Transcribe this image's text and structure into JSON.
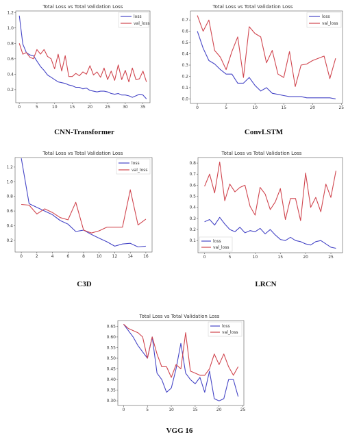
{
  "colors": {
    "loss": "#4545c6",
    "val_loss": "#d0454e"
  },
  "chart_data": [
    {
      "type": "line",
      "title": "Total Loss vs Total Validation Loss",
      "caption": "CNN-Transformer",
      "legend": "top-right",
      "xlim": [
        -1,
        37
      ],
      "ylim": [
        0.03,
        1.22
      ],
      "xticks": [
        0,
        5,
        10,
        15,
        20,
        25,
        30,
        35
      ],
      "yticks": [
        0.2,
        0.4,
        0.6,
        0.8,
        1.0,
        1.2
      ],
      "ytick_labels": [
        "0.2",
        "0.4",
        "0.6",
        "0.8",
        "1.0",
        "1.2"
      ],
      "series": [
        {
          "name": "loss",
          "color": "#4545c6",
          "x": [
            0,
            1,
            2,
            3,
            4,
            5,
            6,
            7,
            8,
            9,
            10,
            11,
            12,
            13,
            14,
            15,
            16,
            17,
            18,
            19,
            20,
            21,
            22,
            23,
            24,
            25,
            26,
            27,
            28,
            29,
            30,
            31,
            32,
            33,
            34,
            35,
            36
          ],
          "values": [
            1.16,
            0.79,
            0.68,
            0.65,
            0.64,
            0.57,
            0.5,
            0.45,
            0.39,
            0.36,
            0.33,
            0.3,
            0.29,
            0.28,
            0.26,
            0.25,
            0.23,
            0.23,
            0.21,
            0.22,
            0.19,
            0.18,
            0.17,
            0.18,
            0.18,
            0.17,
            0.15,
            0.14,
            0.15,
            0.13,
            0.13,
            0.12,
            0.1,
            0.12,
            0.14,
            0.13,
            0.08
          ]
        },
        {
          "name": "val_loss",
          "color": "#d0454e",
          "x": [
            0,
            1,
            2,
            3,
            4,
            5,
            6,
            7,
            8,
            9,
            10,
            11,
            12,
            13,
            14,
            15,
            16,
            17,
            18,
            19,
            20,
            21,
            22,
            23,
            24,
            25,
            26,
            27,
            28,
            29,
            30,
            31,
            32,
            33,
            34,
            35,
            36
          ],
          "values": [
            0.8,
            0.66,
            0.68,
            0.62,
            0.6,
            0.72,
            0.66,
            0.72,
            0.63,
            0.6,
            0.47,
            0.66,
            0.44,
            0.64,
            0.37,
            0.37,
            0.41,
            0.38,
            0.43,
            0.4,
            0.51,
            0.39,
            0.43,
            0.36,
            0.48,
            0.33,
            0.44,
            0.32,
            0.52,
            0.33,
            0.45,
            0.3,
            0.48,
            0.33,
            0.34,
            0.44,
            0.3
          ]
        }
      ]
    },
    {
      "type": "line",
      "title": "Total Loss vs Total Validation Loss",
      "caption": "ConvLSTM",
      "legend": "top-right",
      "xlim": [
        -1.2,
        25.2
      ],
      "ylim": [
        -0.04,
        0.78
      ],
      "xticks": [
        0,
        5,
        10,
        15,
        20,
        25
      ],
      "yticks": [
        0.0,
        0.1,
        0.2,
        0.3,
        0.4,
        0.5,
        0.6,
        0.7
      ],
      "ytick_labels": [
        "0.0",
        "0.1",
        "0.2",
        "0.3",
        "0.4",
        "0.5",
        "0.6",
        "0.7"
      ],
      "series": [
        {
          "name": "loss",
          "color": "#4545c6",
          "x": [
            0,
            1,
            2,
            3,
            4,
            5,
            6,
            7,
            8,
            9,
            10,
            11,
            12,
            13,
            14,
            15,
            16,
            17,
            18,
            19,
            20,
            21,
            22,
            23,
            24
          ],
          "values": [
            0.6,
            0.45,
            0.34,
            0.31,
            0.26,
            0.22,
            0.22,
            0.14,
            0.14,
            0.19,
            0.12,
            0.07,
            0.1,
            0.05,
            0.04,
            0.03,
            0.02,
            0.02,
            0.02,
            0.01,
            0.01,
            0.01,
            0.01,
            0.01,
            0.0
          ]
        },
        {
          "name": "val_loss",
          "color": "#d0454e",
          "x": [
            0,
            1,
            2,
            3,
            4,
            5,
            6,
            7,
            8,
            9,
            10,
            11,
            12,
            13,
            14,
            15,
            16,
            17,
            18,
            19,
            20,
            21,
            22,
            23,
            24
          ],
          "values": [
            0.74,
            0.6,
            0.7,
            0.43,
            0.37,
            0.26,
            0.42,
            0.55,
            0.19,
            0.64,
            0.58,
            0.55,
            0.32,
            0.43,
            0.22,
            0.19,
            0.42,
            0.11,
            0.3,
            0.31,
            0.34,
            0.36,
            0.38,
            0.18,
            0.36
          ]
        }
      ]
    },
    {
      "type": "line",
      "title": "Total Loss vs Total Validation Loss",
      "caption": "C3D",
      "legend": "top-right",
      "xlim": [
        -0.8,
        16.8
      ],
      "ylim": [
        0.04,
        1.33
      ],
      "xticks": [
        0,
        2,
        4,
        6,
        8,
        10,
        12,
        14,
        16
      ],
      "yticks": [
        0.2,
        0.4,
        0.6,
        0.8,
        1.0,
        1.2
      ],
      "ytick_labels": [
        "0.2",
        "0.4",
        "0.6",
        "0.8",
        "1.0",
        "1.2"
      ],
      "series": [
        {
          "name": "loss",
          "color": "#4545c6",
          "x": [
            0,
            1,
            2,
            3,
            4,
            5,
            6,
            7,
            8,
            9,
            10,
            11,
            12,
            13,
            14,
            15,
            16
          ],
          "values": [
            1.32,
            0.7,
            0.65,
            0.6,
            0.55,
            0.47,
            0.42,
            0.32,
            0.34,
            0.28,
            0.23,
            0.18,
            0.12,
            0.15,
            0.16,
            0.11,
            0.12
          ]
        },
        {
          "name": "val_loss",
          "color": "#d0454e",
          "x": [
            0,
            1,
            2,
            3,
            4,
            5,
            6,
            7,
            8,
            9,
            10,
            11,
            12,
            13,
            14,
            15,
            16
          ],
          "values": [
            0.69,
            0.68,
            0.56,
            0.63,
            0.58,
            0.51,
            0.48,
            0.72,
            0.34,
            0.3,
            0.33,
            0.38,
            0.38,
            0.38,
            0.89,
            0.41,
            0.49
          ]
        }
      ]
    },
    {
      "type": "line",
      "title": "Total Loss vs Total Validation Loss",
      "caption": "LRCN",
      "legend": "lower-left",
      "xlim": [
        -1.3,
        27.3
      ],
      "ylim": [
        -0.01,
        0.85
      ],
      "xticks": [
        0,
        5,
        10,
        15,
        20,
        25
      ],
      "yticks": [
        0.1,
        0.2,
        0.3,
        0.4,
        0.5,
        0.6,
        0.7,
        0.8
      ],
      "ytick_labels": [
        "0.1",
        "0.2",
        "0.3",
        "0.4",
        "0.5",
        "0.6",
        "0.7",
        "0.8"
      ],
      "series": [
        {
          "name": "loss",
          "color": "#4545c6",
          "x": [
            0,
            1,
            2,
            3,
            4,
            5,
            6,
            7,
            8,
            9,
            10,
            11,
            12,
            13,
            14,
            15,
            16,
            17,
            18,
            19,
            20,
            21,
            22,
            23,
            24,
            25,
            26
          ],
          "values": [
            0.27,
            0.29,
            0.24,
            0.31,
            0.25,
            0.2,
            0.18,
            0.22,
            0.17,
            0.19,
            0.18,
            0.21,
            0.16,
            0.2,
            0.15,
            0.11,
            0.1,
            0.13,
            0.1,
            0.09,
            0.07,
            0.06,
            0.09,
            0.1,
            0.07,
            0.04,
            0.03
          ]
        },
        {
          "name": "val_loss",
          "color": "#d0454e",
          "x": [
            0,
            1,
            2,
            3,
            4,
            5,
            6,
            7,
            8,
            9,
            10,
            11,
            12,
            13,
            14,
            15,
            16,
            17,
            18,
            19,
            20,
            21,
            22,
            23,
            24,
            25,
            26
          ],
          "values": [
            0.59,
            0.7,
            0.53,
            0.81,
            0.46,
            0.61,
            0.54,
            0.58,
            0.6,
            0.41,
            0.33,
            0.58,
            0.52,
            0.38,
            0.45,
            0.57,
            0.29,
            0.48,
            0.48,
            0.28,
            0.71,
            0.4,
            0.49,
            0.36,
            0.61,
            0.49,
            0.73
          ]
        }
      ]
    },
    {
      "type": "line",
      "title": "Total Loss vs Total Validation Loss",
      "caption": "VGG 16",
      "legend": "top-right",
      "xlim": [
        -1.2,
        25.2
      ],
      "ylim": [
        0.278,
        0.677
      ],
      "xticks": [
        0,
        5,
        10,
        15,
        20,
        25
      ],
      "yticks": [
        0.3,
        0.35,
        0.4,
        0.45,
        0.5,
        0.55,
        0.6,
        0.65
      ],
      "ytick_labels": [
        "0.30",
        "0.35",
        "0.40",
        "0.45",
        "0.50",
        "0.55",
        "0.60",
        "0.65"
      ],
      "series": [
        {
          "name": "loss",
          "color": "#4545c6",
          "x": [
            0,
            1,
            2,
            3,
            4,
            5,
            6,
            7,
            8,
            9,
            10,
            11,
            12,
            13,
            14,
            15,
            16,
            17,
            18,
            19,
            20,
            21,
            22,
            23,
            24
          ],
          "values": [
            0.66,
            0.63,
            0.6,
            0.56,
            0.53,
            0.5,
            0.6,
            0.43,
            0.4,
            0.34,
            0.36,
            0.45,
            0.57,
            0.43,
            0.4,
            0.38,
            0.41,
            0.34,
            0.44,
            0.31,
            0.3,
            0.31,
            0.4,
            0.4,
            0.32
          ]
        },
        {
          "name": "val_loss",
          "color": "#d0454e",
          "x": [
            0,
            1,
            2,
            3,
            4,
            5,
            6,
            7,
            8,
            9,
            10,
            11,
            12,
            13,
            14,
            15,
            16,
            17,
            18,
            19,
            20,
            21,
            22,
            23,
            24
          ],
          "values": [
            0.66,
            0.64,
            0.63,
            0.62,
            0.6,
            0.5,
            0.6,
            0.52,
            0.46,
            0.46,
            0.41,
            0.47,
            0.45,
            0.62,
            0.44,
            0.43,
            0.42,
            0.42,
            0.45,
            0.52,
            0.47,
            0.52,
            0.46,
            0.42,
            0.46
          ]
        }
      ]
    }
  ]
}
